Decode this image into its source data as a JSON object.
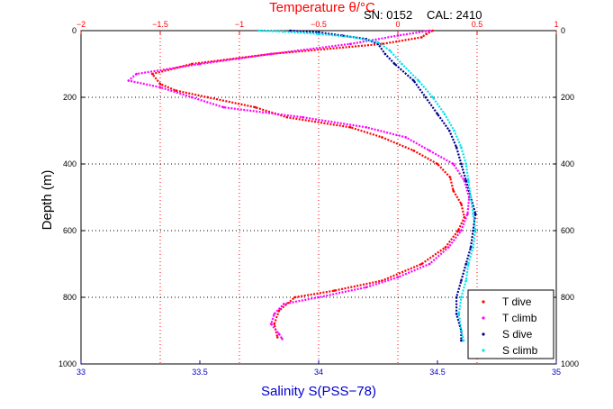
{
  "header": {
    "serial_label": "SN: 0152",
    "cal_label": "CAL: 2410"
  },
  "chart_data": {
    "type": "scatter",
    "title": "",
    "top_xlabel": "Temperature θ/°C",
    "bottom_xlabel": "Salinity S(PSS−78)",
    "ylabel": "Depth (m)",
    "temperature_axis": {
      "range": [
        -2,
        1
      ],
      "ticks": [
        "−2",
        "−1.5",
        "−1",
        "−0.5",
        "0",
        "0.5",
        "1"
      ],
      "tick_values": [
        -2,
        -1.5,
        -1,
        -0.5,
        0,
        0.5,
        1
      ]
    },
    "salinity_axis": {
      "range": [
        33,
        35
      ],
      "ticks": [
        "33",
        "33.5",
        "34",
        "34.5",
        "35"
      ],
      "tick_values": [
        33,
        33.5,
        34,
        34.5,
        35
      ]
    },
    "depth_axis": {
      "range": [
        0,
        1000
      ],
      "reversed": true,
      "ticks": [
        "0",
        "200",
        "400",
        "600",
        "800",
        "1000"
      ],
      "tick_values": [
        0,
        200,
        400,
        600,
        800,
        1000
      ]
    },
    "grid": "dotted, red vertical at temperature ticks, black horizontal at depth ticks",
    "legend_position": "bottom-right",
    "colors": {
      "t_dive": "#ff0000",
      "t_climb": "#ff00ff",
      "s_dive": "#00008b",
      "s_climb": "#00e5ee",
      "temp_axis": "#ff0000",
      "sal_axis": "#0000cc"
    },
    "series": [
      {
        "name": "T dive",
        "axis": "temperature",
        "points": [
          [
            0.22,
            0
          ],
          [
            0.18,
            10
          ],
          [
            0.15,
            20
          ],
          [
            -0.1,
            40
          ],
          [
            -0.8,
            70
          ],
          [
            -1.3,
            100
          ],
          [
            -1.55,
            130
          ],
          [
            -1.5,
            160
          ],
          [
            -1.4,
            180
          ],
          [
            -1.2,
            200
          ],
          [
            -0.9,
            230
          ],
          [
            -0.7,
            260
          ],
          [
            -0.3,
            290
          ],
          [
            -0.1,
            320
          ],
          [
            0.1,
            360
          ],
          [
            0.25,
            400
          ],
          [
            0.33,
            440
          ],
          [
            0.35,
            480
          ],
          [
            0.4,
            520
          ],
          [
            0.42,
            560
          ],
          [
            0.38,
            600
          ],
          [
            0.3,
            650
          ],
          [
            0.15,
            700
          ],
          [
            -0.1,
            750
          ],
          [
            -0.4,
            780
          ],
          [
            -0.65,
            800
          ],
          [
            -0.75,
            840
          ],
          [
            -0.78,
            880
          ],
          [
            -0.76,
            920
          ]
        ]
      },
      {
        "name": "T climb",
        "axis": "temperature",
        "points": [
          [
            0.2,
            0
          ],
          [
            0.0,
            15
          ],
          [
            -0.3,
            40
          ],
          [
            -0.8,
            70
          ],
          [
            -1.25,
            100
          ],
          [
            -1.65,
            130
          ],
          [
            -1.7,
            150
          ],
          [
            -1.5,
            170
          ],
          [
            -1.3,
            200
          ],
          [
            -1.1,
            230
          ],
          [
            -0.6,
            260
          ],
          [
            -0.2,
            290
          ],
          [
            0.05,
            320
          ],
          [
            0.2,
            360
          ],
          [
            0.35,
            400
          ],
          [
            0.42,
            450
          ],
          [
            0.45,
            500
          ],
          [
            0.44,
            550
          ],
          [
            0.4,
            600
          ],
          [
            0.32,
            650
          ],
          [
            0.2,
            700
          ],
          [
            0.0,
            740
          ],
          [
            -0.2,
            770
          ],
          [
            -0.5,
            800
          ],
          [
            -0.72,
            820
          ],
          [
            -0.78,
            850
          ],
          [
            -0.8,
            880
          ],
          [
            -0.75,
            910
          ],
          [
            -0.73,
            925
          ]
        ]
      },
      {
        "name": "S dive",
        "axis": "salinity",
        "points": [
          [
            33.88,
            0
          ],
          [
            34.0,
            5
          ],
          [
            34.1,
            15
          ],
          [
            34.2,
            25
          ],
          [
            34.25,
            40
          ],
          [
            34.28,
            70
          ],
          [
            34.32,
            100
          ],
          [
            34.4,
            150
          ],
          [
            34.45,
            200
          ],
          [
            34.5,
            250
          ],
          [
            34.55,
            300
          ],
          [
            34.58,
            350
          ],
          [
            34.6,
            400
          ],
          [
            34.62,
            450
          ],
          [
            34.64,
            500
          ],
          [
            34.66,
            550
          ],
          [
            34.65,
            600
          ],
          [
            34.64,
            650
          ],
          [
            34.62,
            700
          ],
          [
            34.6,
            750
          ],
          [
            34.58,
            800
          ],
          [
            34.58,
            850
          ],
          [
            34.6,
            900
          ],
          [
            34.6,
            930
          ]
        ]
      },
      {
        "name": "S climb",
        "axis": "salinity",
        "points": [
          [
            33.75,
            0
          ],
          [
            33.85,
            3
          ],
          [
            34.0,
            10
          ],
          [
            34.15,
            20
          ],
          [
            34.25,
            35
          ],
          [
            34.3,
            60
          ],
          [
            34.35,
            100
          ],
          [
            34.42,
            150
          ],
          [
            34.48,
            200
          ],
          [
            34.53,
            250
          ],
          [
            34.57,
            300
          ],
          [
            34.6,
            350
          ],
          [
            34.62,
            400
          ],
          [
            34.63,
            450
          ],
          [
            34.64,
            500
          ],
          [
            34.65,
            550
          ],
          [
            34.66,
            600
          ],
          [
            34.65,
            650
          ],
          [
            34.63,
            700
          ],
          [
            34.62,
            750
          ],
          [
            34.6,
            800
          ],
          [
            34.59,
            850
          ],
          [
            34.6,
            900
          ],
          [
            34.61,
            930
          ]
        ]
      }
    ]
  }
}
